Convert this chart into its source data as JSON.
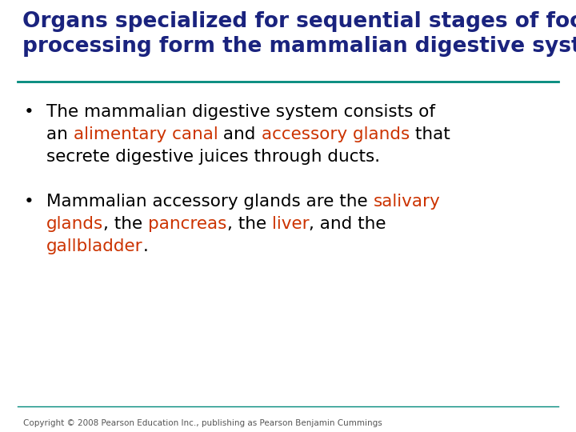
{
  "background_color": "#ffffff",
  "title_line1": "Organs specialized for sequential stages of food",
  "title_line2": "processing form the mammalian digestive system",
  "title_color": "#1a237e",
  "separator_color": "#00897b",
  "bottom_separator_color": "#00897b",
  "bullet_color": "#000000",
  "bullet_char": "•",
  "copyright_text": "Copyright © 2008 Pearson Education Inc., publishing as Pearson Benjamin Cummings",
  "copyright_color": "#555555",
  "font_size_title": 19,
  "font_size_body": 15.5,
  "font_size_copyright": 7.5,
  "bullet1_lines": [
    [
      {
        "text": "The mammalian digestive system consists of",
        "color": "#000000"
      }
    ],
    [
      {
        "text": "an ",
        "color": "#000000"
      },
      {
        "text": "alimentary canal",
        "color": "#cc3300"
      },
      {
        "text": " and ",
        "color": "#000000"
      },
      {
        "text": "accessory glands",
        "color": "#cc3300"
      },
      {
        "text": " that",
        "color": "#000000"
      }
    ],
    [
      {
        "text": "secrete digestive juices through ducts.",
        "color": "#000000"
      }
    ]
  ],
  "bullet2_lines": [
    [
      {
        "text": "Mammalian accessory glands are the ",
        "color": "#000000"
      },
      {
        "text": "salivary",
        "color": "#cc3300"
      }
    ],
    [
      {
        "text": "glands",
        "color": "#cc3300"
      },
      {
        "text": ", the ",
        "color": "#000000"
      },
      {
        "text": "pancreas",
        "color": "#cc3300"
      },
      {
        "text": ", the ",
        "color": "#000000"
      },
      {
        "text": "liver",
        "color": "#cc3300"
      },
      {
        "text": ", and the",
        "color": "#000000"
      }
    ],
    [
      {
        "text": "gallbladder",
        "color": "#cc3300"
      },
      {
        "text": ".",
        "color": "#000000"
      }
    ]
  ]
}
